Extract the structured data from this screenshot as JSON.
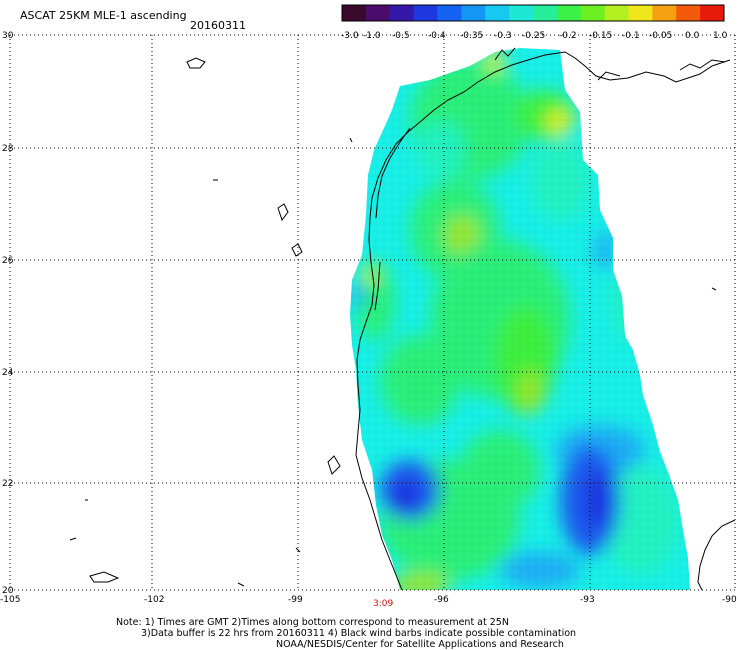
{
  "header": {
    "title": "ASCAT 25KM MLE-1 ascending",
    "date": "20160311"
  },
  "colorbar": {
    "labels": [
      "-3.0",
      "-1.0",
      "-0.5",
      "-0.4",
      "-0.35",
      "-0.3",
      "-0.25",
      "-0.2",
      "-0.15",
      "-0.1",
      "-0.05",
      "0.0",
      "1.0"
    ],
    "colors": [
      "#3a0a2c",
      "#4a0d6b",
      "#3318a8",
      "#1e37e0",
      "#1463f5",
      "#1496f5",
      "#17c8f0",
      "#1de8d6",
      "#26ee9a",
      "#3cf048",
      "#6df022",
      "#b4f020",
      "#f0e61c",
      "#f7a010",
      "#f55a0a",
      "#e81a0a"
    ]
  },
  "map": {
    "lat_labels": [
      "30",
      "28",
      "26",
      "24",
      "22",
      "20"
    ],
    "lon_labels": [
      "-105",
      "-102",
      "-99",
      "-96",
      "-93",
      "-90"
    ],
    "timestamp": "3:09",
    "colors": {
      "grid": "#000000",
      "coast": "#000000",
      "cyan": "#19f0e8",
      "aqua": "#22f3c2",
      "green": "#2cf07a",
      "lime": "#3cf040",
      "yellowgreen": "#9ae62a",
      "yellow": "#e6ee20",
      "blue": "#1a5cf0",
      "deepblue": "#1a2ee0",
      "skyblue": "#1aaef5"
    }
  },
  "notes": {
    "line1": "Note: 1) Times are GMT 2)Times along bottom correspond to measurement at 25N",
    "line2": "3)Data buffer is 22 hrs from 20160311 4) Black wind barbs indicate possible contamination",
    "line3": "NOAA/NESDIS/Center for Satellite Applications and Research"
  }
}
